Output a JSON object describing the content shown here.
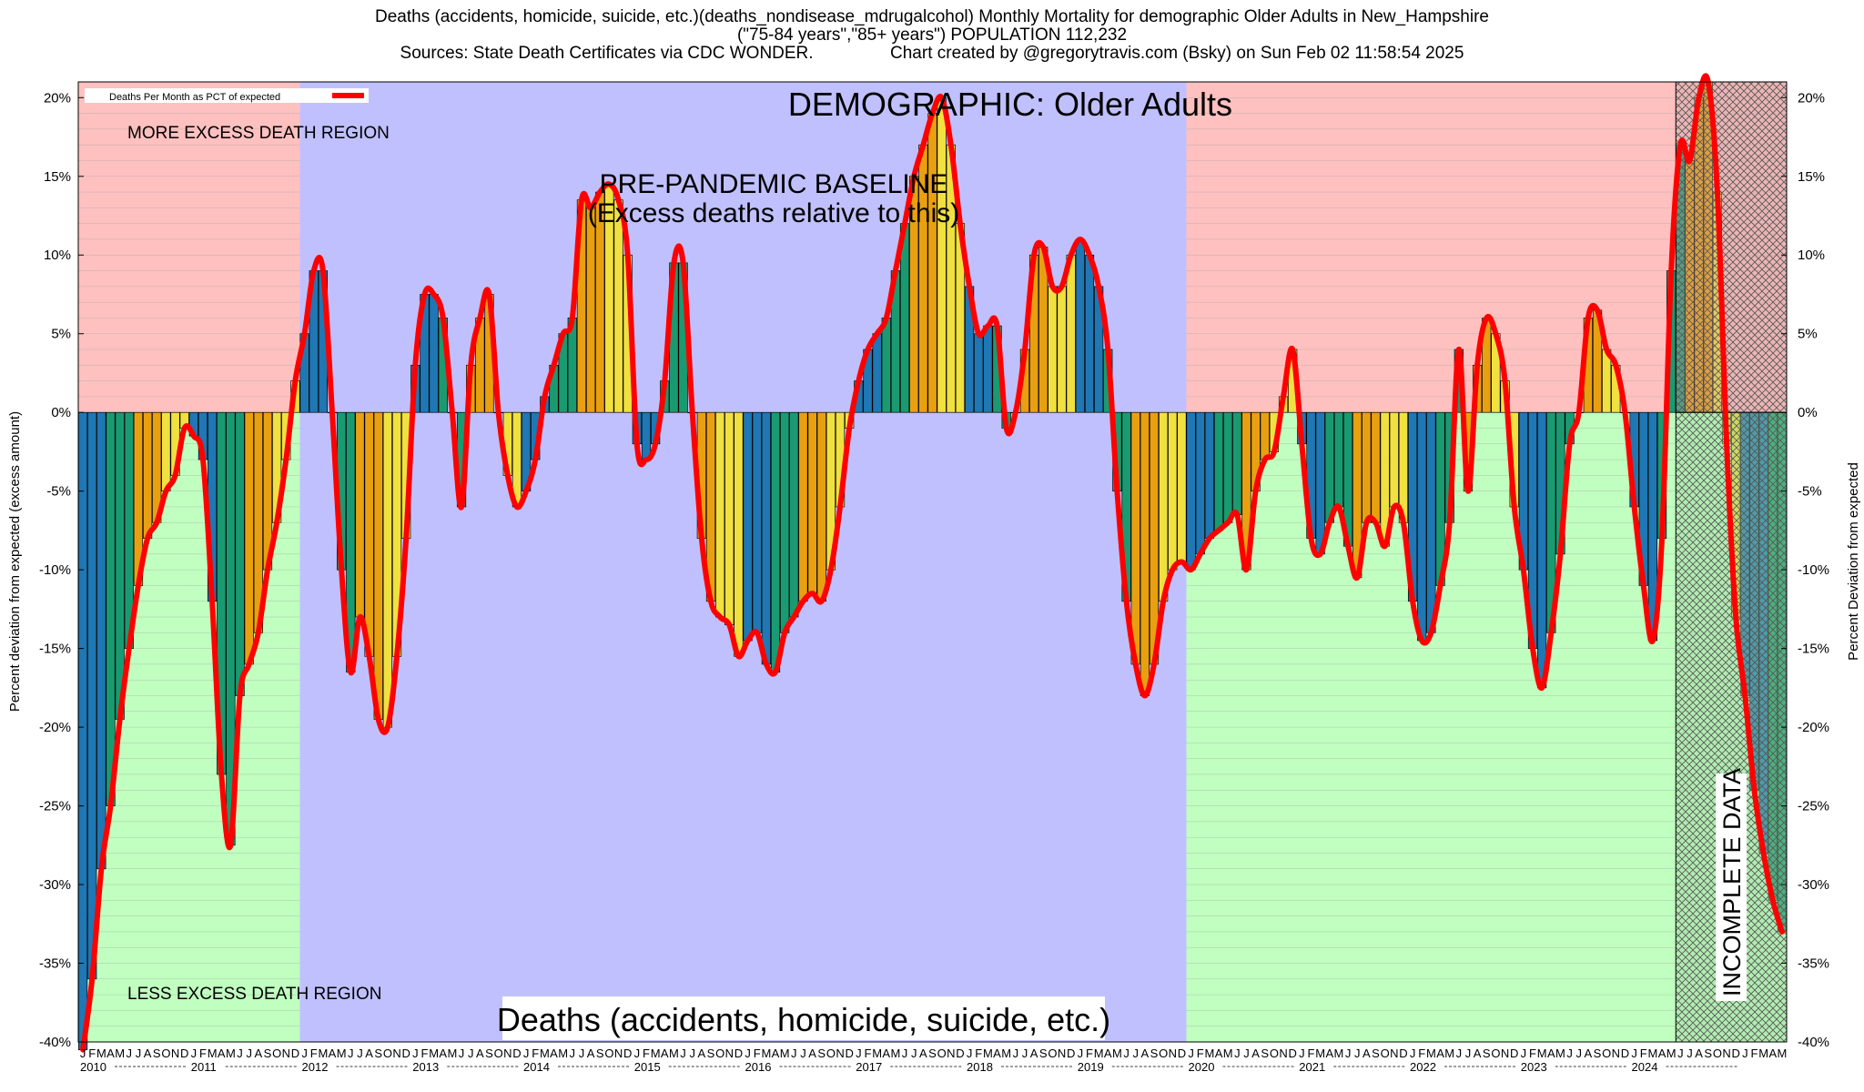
{
  "header": {
    "line1": "Deaths (accidents, homicide, suicide, etc.)(deaths_nondisease_mdrugalcohol) Monthly Mortality for demographic Older Adults in New_Hampshire",
    "line2": "(\"75-84 years\",\"85+ years\") POPULATION 112,232",
    "line3": "Sources: State Death Certificates via CDC WONDER.                Chart created by @gregorytravis.com (Bsky) on Sun Feb 02 11:58:54 2025"
  },
  "chart_data": {
    "type": "bar",
    "title": "DEMOGRAPHIC: Older Adults",
    "bottom_label": "Deaths (accidents, homicide, suicide, etc.)",
    "baseline_label_1": "PRE-PANDEMIC BASELINE",
    "baseline_label_2": "(Excess deaths relative to this)",
    "more_region_label": "MORE EXCESS DEATH REGION",
    "less_region_label": "LESS EXCESS DEATH REGION",
    "incomplete_label": "INCOMPLETE DATA",
    "legend_label": "Deaths Per Month as PCT of expected",
    "ylabel_left": "Percent deviation from expected (excess amount)",
    "ylabel_right": "Percent Deviation from expected",
    "ylim": [
      -40,
      21
    ],
    "yticks": [
      20,
      15,
      10,
      5,
      0,
      -5,
      -10,
      -15,
      -20,
      -25,
      -30,
      -35,
      -40
    ],
    "ytick_labels": [
      "20%",
      "15%",
      "10%",
      "5%",
      "0%",
      "-5%",
      "-10%",
      "-15%",
      "-20%",
      "-25%",
      "-30%",
      "-35%",
      "-40%"
    ],
    "x_start": "2010-01",
    "years": [
      "2010",
      "2011",
      "2012",
      "2013",
      "2014",
      "2015",
      "2016",
      "2017",
      "2018",
      "2019",
      "2020",
      "2021",
      "2022",
      "2023",
      "2024"
    ],
    "month_letters": [
      "J",
      "F",
      "M",
      "A",
      "M",
      "J",
      "J",
      "A",
      "S",
      "O",
      "N",
      "D"
    ],
    "baseline_period": [
      "2012-01",
      "2019-12"
    ],
    "incomplete_from": "2024-06",
    "colors": {
      "more_region": "#ffc0c0",
      "less_region": "#c0ffc0",
      "baseline_region": "#c0c0ff",
      "line": "#ff0000",
      "bar_cycle": [
        "#1f77b4",
        "#1a9a70",
        "#e8a010",
        "#f0e040"
      ]
    },
    "series": [
      {
        "name": "Deaths Per Month as PCT of expected",
        "values": [
          -40.5,
          -36,
          -29,
          -25,
          -19.5,
          -15,
          -11,
          -8,
          -7,
          -5,
          -4,
          -1,
          -1.5,
          -3,
          -12,
          -23,
          -27.5,
          -18,
          -16,
          -14,
          -10,
          -7,
          -3,
          2,
          5,
          9,
          9,
          0,
          -10,
          -16.5,
          -13,
          -15.5,
          -19.5,
          -20,
          -15.5,
          -8,
          3,
          7.5,
          7.5,
          6,
          0,
          -6,
          3,
          6,
          7.5,
          0,
          -4,
          -6,
          -5,
          -3,
          1,
          3,
          5,
          6,
          13.5,
          13,
          14,
          14.5,
          13.5,
          10,
          -2,
          -3,
          -2,
          2,
          9.5,
          9.5,
          0,
          -8,
          -12,
          -13,
          -13.5,
          -15.5,
          -14.5,
          -14,
          -16,
          -16.5,
          -14,
          -13,
          -12,
          -11.5,
          -12,
          -10,
          -6,
          -1,
          2,
          4,
          5,
          6,
          9,
          12,
          15,
          17,
          19,
          20,
          17,
          12,
          8,
          5,
          5.5,
          5.5,
          -1,
          0,
          4,
          10,
          10.5,
          8,
          8,
          10,
          11,
          10,
          8,
          4,
          -5,
          -12,
          -16,
          -18,
          -16,
          -12,
          -10,
          -9.5,
          -10,
          -9,
          -8,
          -7.5,
          -7,
          -6.5,
          -10,
          -5,
          -3,
          -2.5,
          1,
          4,
          -2,
          -8,
          -9,
          -7,
          -6,
          -8.5,
          -10.5,
          -7,
          -7,
          -8.5,
          -6,
          -7,
          -12,
          -14.5,
          -14,
          -11,
          -7,
          4,
          -5,
          3,
          6,
          5,
          2,
          -6,
          -10,
          -15,
          -17.5,
          -14,
          -9,
          -2,
          0,
          6,
          6.5,
          4,
          3,
          0,
          -6,
          -11,
          -14.5,
          -8,
          9,
          17,
          16,
          20,
          21,
          14,
          -2,
          -13,
          -18,
          -24,
          -28,
          -31,
          -33
        ]
      }
    ]
  }
}
